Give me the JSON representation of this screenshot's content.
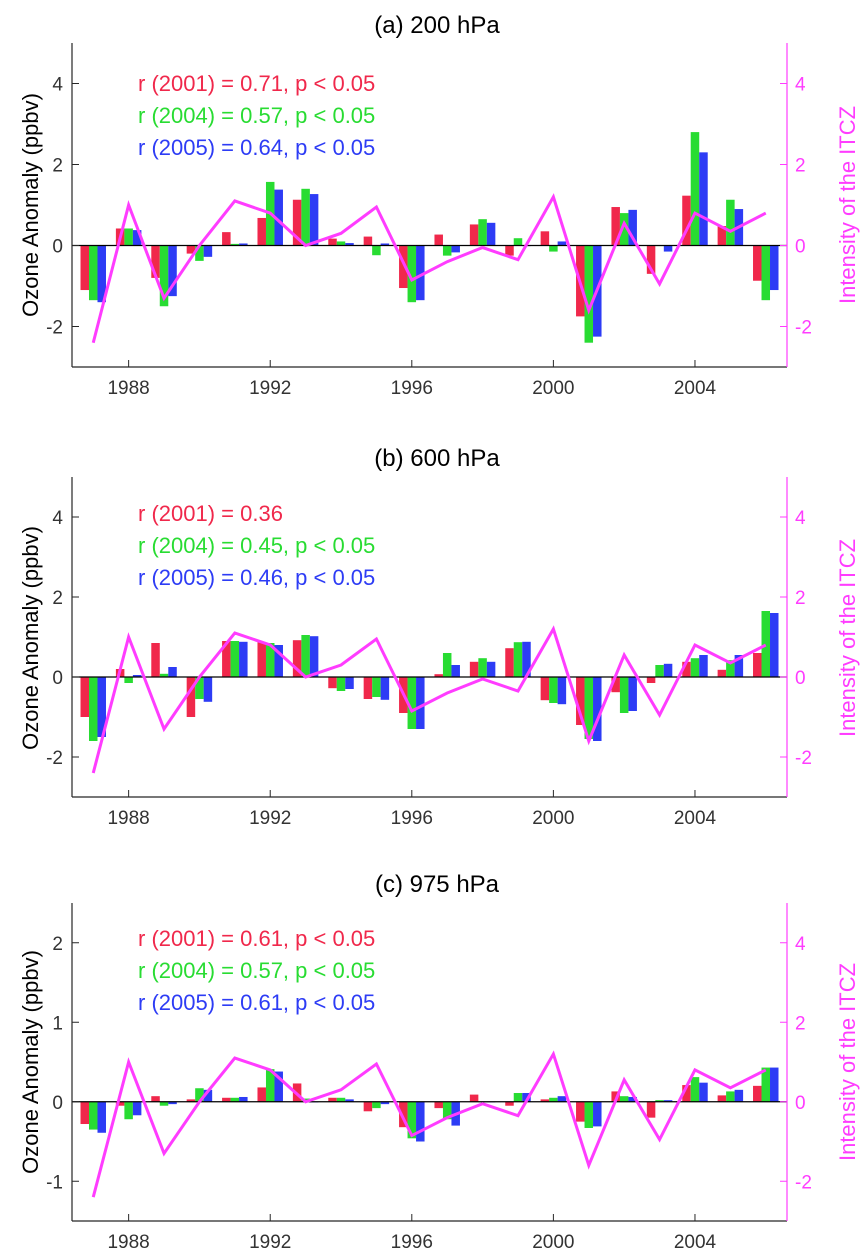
{
  "colors": {
    "y2001": "#f0284b",
    "y2004": "#28dc32",
    "y2005": "#2d3cf5",
    "itcz": "#ff3cff",
    "axis": "#262626"
  },
  "chart_data": [
    {
      "type": "bar",
      "title": "(a) 200 hPa",
      "ylabel": "Ozone Anomaly (ppbv)",
      "y2label": "Intensity of the ITCZ",
      "x_years": [
        1987,
        1988,
        1989,
        1990,
        1991,
        1992,
        1993,
        1994,
        1995,
        1996,
        1997,
        1998,
        1999,
        2000,
        2001,
        2002,
        2003,
        2004,
        2005,
        2006
      ],
      "xticks": [
        1988,
        1992,
        1996,
        2000,
        2004
      ],
      "ylim": [
        -3,
        5
      ],
      "yticks": [
        -2,
        0,
        2,
        4
      ],
      "y2lim": [
        -3,
        5
      ],
      "y2ticks": [
        -2,
        0,
        2,
        4
      ],
      "annotations": [
        {
          "text": "r (2001) = 0.71,  p < 0.05",
          "series": "2001"
        },
        {
          "text": "r (2004) = 0.57,  p < 0.05",
          "series": "2004"
        },
        {
          "text": "r (2005) = 0.64,  p < 0.05",
          "series": "2005"
        }
      ],
      "series": [
        {
          "key": "2001",
          "values": [
            -1.1,
            0.42,
            -0.8,
            -0.2,
            0.33,
            0.68,
            1.13,
            0.17,
            0.22,
            -1.05,
            0.27,
            0.52,
            -0.25,
            0.35,
            -1.75,
            0.95,
            -0.7,
            1.23,
            0.48,
            -0.87
          ]
        },
        {
          "key": "2004",
          "values": [
            -1.35,
            0.42,
            -1.5,
            -0.38,
            0.04,
            1.57,
            1.4,
            0.1,
            -0.24,
            -1.4,
            -0.25,
            0.65,
            0.18,
            -0.15,
            -2.4,
            0.8,
            0.0,
            2.8,
            1.13,
            -1.35
          ]
        },
        {
          "key": "2005",
          "values": [
            -1.4,
            0.38,
            -1.25,
            -0.28,
            0.05,
            1.38,
            1.27,
            0.06,
            0.05,
            -1.35,
            -0.17,
            0.56,
            0.0,
            0.1,
            -2.25,
            0.88,
            -0.15,
            2.3,
            0.9,
            -1.1
          ]
        }
      ],
      "itcz": [
        -2.4,
        1.0,
        -1.3,
        0.0,
        1.1,
        0.8,
        0.0,
        0.3,
        0.95,
        -0.85,
        -0.4,
        -0.05,
        -0.35,
        1.2,
        -1.6,
        0.55,
        -0.95,
        0.8,
        0.35,
        0.8
      ]
    },
    {
      "type": "bar",
      "title": "(b) 600 hPa",
      "ylabel": "Ozone Anomaly (ppbv)",
      "y2label": "Intensity of the ITCZ",
      "x_years": [
        1987,
        1988,
        1989,
        1990,
        1991,
        1992,
        1993,
        1994,
        1995,
        1996,
        1997,
        1998,
        1999,
        2000,
        2001,
        2002,
        2003,
        2004,
        2005,
        2006
      ],
      "xticks": [
        1988,
        1992,
        1996,
        2000,
        2004
      ],
      "ylim": [
        -3,
        5
      ],
      "yticks": [
        -2,
        0,
        2,
        4
      ],
      "y2lim": [
        -3,
        5
      ],
      "y2ticks": [
        -2,
        0,
        2,
        4
      ],
      "annotations": [
        {
          "text": "r (2001) = 0.36",
          "series": "2001"
        },
        {
          "text": "r (2004) = 0.45,  p < 0.05",
          "series": "2004"
        },
        {
          "text": "r (2005) = 0.46,  p < 0.05",
          "series": "2005"
        }
      ],
      "series": [
        {
          "key": "2001",
          "values": [
            -1.0,
            0.2,
            0.85,
            -1.0,
            0.9,
            0.87,
            0.92,
            -0.28,
            -0.55,
            -0.9,
            0.07,
            0.38,
            0.72,
            -0.58,
            -1.2,
            -0.38,
            -0.15,
            0.38,
            0.18,
            0.6
          ]
        },
        {
          "key": "2004",
          "values": [
            -1.6,
            -0.15,
            0.08,
            -0.55,
            0.9,
            0.85,
            1.05,
            -0.35,
            -0.5,
            -1.3,
            0.6,
            0.47,
            0.87,
            -0.65,
            -1.55,
            -0.9,
            0.3,
            0.47,
            0.42,
            1.65
          ]
        },
        {
          "key": "2005",
          "values": [
            -1.5,
            0.05,
            0.25,
            -0.62,
            0.88,
            0.8,
            1.02,
            -0.3,
            -0.57,
            -1.3,
            0.3,
            0.38,
            0.88,
            -0.68,
            -1.6,
            -0.85,
            0.33,
            0.55,
            0.55,
            1.6
          ]
        }
      ],
      "itcz": [
        -2.4,
        1.0,
        -1.3,
        0.0,
        1.1,
        0.8,
        0.0,
        0.3,
        0.95,
        -0.85,
        -0.4,
        -0.05,
        -0.35,
        1.2,
        -1.6,
        0.55,
        -0.95,
        0.8,
        0.35,
        0.8
      ]
    },
    {
      "type": "bar",
      "title": "(c) 975 hPa",
      "ylabel": "Ozone Anomaly (ppbv)",
      "y2label": "Intensity of the ITCZ",
      "x_years": [
        1987,
        1988,
        1989,
        1990,
        1991,
        1992,
        1993,
        1994,
        1995,
        1996,
        1997,
        1998,
        1999,
        2000,
        2001,
        2002,
        2003,
        2004,
        2005,
        2006
      ],
      "xticks": [
        1988,
        1992,
        1996,
        2000,
        2004
      ],
      "ylim": [
        -1.5,
        2.5
      ],
      "yticks": [
        -1,
        0,
        1,
        2
      ],
      "y2lim": [
        -3,
        5
      ],
      "y2ticks": [
        -2,
        0,
        2,
        4
      ],
      "annotations": [
        {
          "text": "r (2001) = 0.61,  p < 0.05",
          "series": "2001"
        },
        {
          "text": "r (2004) = 0.57,  p < 0.05",
          "series": "2004"
        },
        {
          "text": "r (2005) = 0.61,  p < 0.05",
          "series": "2005"
        }
      ],
      "series": [
        {
          "key": "2001",
          "values": [
            -0.28,
            -0.05,
            0.07,
            0.03,
            0.05,
            0.18,
            0.23,
            0.05,
            -0.12,
            -0.32,
            -0.08,
            0.09,
            -0.05,
            0.03,
            -0.25,
            0.13,
            -0.2,
            0.21,
            0.08,
            0.2
          ]
        },
        {
          "key": "2004",
          "values": [
            -0.35,
            -0.22,
            -0.05,
            0.17,
            0.05,
            0.41,
            0.04,
            0.05,
            -0.08,
            -0.46,
            -0.22,
            0.0,
            0.11,
            0.05,
            -0.33,
            0.07,
            0.02,
            0.31,
            0.13,
            0.43
          ]
        },
        {
          "key": "2005",
          "values": [
            -0.39,
            -0.17,
            -0.03,
            0.15,
            0.06,
            0.38,
            0.0,
            0.03,
            -0.03,
            -0.5,
            -0.3,
            0.0,
            0.11,
            0.07,
            -0.31,
            0.06,
            0.02,
            0.24,
            0.15,
            0.43
          ]
        }
      ],
      "itcz": [
        -2.4,
        1.0,
        -1.3,
        0.0,
        1.1,
        0.8,
        0.0,
        0.3,
        0.95,
        -0.85,
        -0.4,
        -0.05,
        -0.35,
        1.2,
        -1.6,
        0.55,
        -0.95,
        0.8,
        0.35,
        0.8
      ]
    }
  ]
}
